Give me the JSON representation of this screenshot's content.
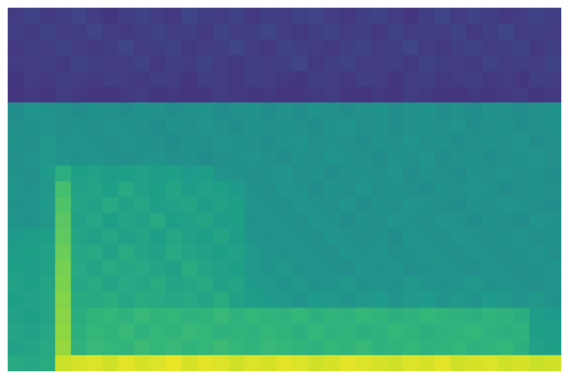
{
  "chart_data": {
    "type": "heatmap",
    "tick_labels": false,
    "grid": false,
    "color_range": [
      0,
      100
    ],
    "cells": [
      [
        18,
        20,
        17,
        19,
        21,
        18,
        16,
        19,
        20,
        18,
        17,
        21,
        19,
        18,
        20,
        17,
        19,
        18,
        20,
        21,
        18,
        17,
        19,
        20,
        18,
        16,
        19,
        21,
        18,
        20,
        19,
        17,
        18,
        20,
        19
      ],
      [
        19,
        17,
        20,
        18,
        19,
        21,
        18,
        17,
        19,
        20,
        18,
        19,
        17,
        20,
        18,
        19,
        21,
        18,
        17,
        19,
        20,
        18,
        19,
        17,
        20,
        18,
        19,
        18,
        20,
        17,
        19,
        21,
        18,
        19,
        18
      ],
      [
        17,
        19,
        18,
        20,
        18,
        17,
        19,
        21,
        18,
        19,
        20,
        17,
        18,
        19,
        21,
        18,
        17,
        20,
        19,
        18,
        17,
        19,
        20,
        18,
        19,
        21,
        18,
        17,
        19,
        20,
        18,
        19,
        20,
        17,
        19
      ],
      [
        18,
        18,
        19,
        17,
        20,
        19,
        18,
        18,
        20,
        17,
        19,
        18,
        20,
        18,
        17,
        19,
        18,
        19,
        21,
        17,
        19,
        20,
        18,
        18,
        19,
        17,
        20,
        19,
        18,
        17,
        20,
        18,
        19,
        18,
        20
      ],
      [
        16,
        18,
        17,
        19,
        18,
        17,
        19,
        18,
        17,
        19,
        18,
        16,
        19,
        18,
        17,
        19,
        18,
        17,
        16,
        19,
        18,
        17,
        19,
        18,
        16,
        18,
        19,
        17,
        18,
        19,
        17,
        18,
        16,
        19,
        18
      ],
      [
        15,
        17,
        16,
        18,
        17,
        16,
        15,
        17,
        18,
        16,
        17,
        15,
        16,
        18,
        17,
        16,
        17,
        15,
        16,
        17,
        18,
        16,
        15,
        17,
        16,
        18,
        17,
        16,
        15,
        17,
        16,
        17,
        18,
        16,
        17
      ],
      [
        49,
        52,
        51,
        50,
        49,
        51,
        50,
        49,
        51,
        50,
        49,
        50,
        51,
        49,
        50,
        51,
        49,
        50,
        49,
        51,
        50,
        49,
        50,
        51,
        49,
        50,
        51,
        49,
        50,
        49,
        51,
        50,
        49,
        50,
        51
      ],
      [
        50,
        51,
        52,
        50,
        51,
        50,
        52,
        51,
        50,
        49,
        51,
        50,
        52,
        50,
        49,
        51,
        50,
        51,
        50,
        49,
        51,
        52,
        50,
        51,
        49,
        50,
        51,
        50,
        52,
        49,
        50,
        51,
        49,
        50,
        51
      ],
      [
        51,
        50,
        53,
        51,
        52,
        51,
        50,
        52,
        51,
        50,
        49,
        51,
        50,
        52,
        51,
        50,
        49,
        51,
        52,
        50,
        51,
        50,
        49,
        51,
        50,
        52,
        50,
        51,
        49,
        50,
        51,
        50,
        52,
        49,
        50
      ],
      [
        50,
        52,
        53,
        52,
        51,
        52,
        51,
        50,
        51,
        52,
        50,
        51,
        49,
        50,
        51,
        52,
        50,
        49,
        51,
        50,
        52,
        51,
        50,
        49,
        51,
        50,
        52,
        49,
        50,
        51,
        49,
        50,
        51,
        52,
        50
      ],
      [
        51,
        50,
        54,
        62,
        56,
        57,
        55,
        56,
        57,
        55,
        56,
        54,
        55,
        52,
        51,
        50,
        51,
        52,
        50,
        51,
        49,
        50,
        51,
        50,
        52,
        49,
        51,
        50,
        49,
        51,
        50,
        52,
        50,
        51,
        49
      ],
      [
        52,
        51,
        53,
        70,
        57,
        58,
        56,
        60,
        57,
        56,
        58,
        55,
        57,
        56,
        54,
        51,
        50,
        52,
        51,
        49,
        51,
        50,
        52,
        50,
        51,
        50,
        49,
        51,
        50,
        52,
        51,
        49,
        50,
        51,
        50
      ],
      [
        51,
        52,
        54,
        72,
        58,
        57,
        60,
        57,
        59,
        56,
        57,
        58,
        55,
        57,
        56,
        52,
        51,
        50,
        52,
        51,
        50,
        52,
        49,
        51,
        50,
        52,
        51,
        50,
        49,
        51,
        50,
        52,
        51,
        50,
        49
      ],
      [
        52,
        51,
        53,
        74,
        57,
        59,
        56,
        58,
        57,
        60,
        56,
        57,
        58,
        55,
        56,
        51,
        52,
        51,
        50,
        52,
        51,
        49,
        51,
        50,
        52,
        51,
        50,
        52,
        51,
        49,
        51,
        50,
        49,
        52,
        51
      ],
      [
        54,
        55,
        56,
        75,
        58,
        57,
        59,
        57,
        58,
        56,
        59,
        57,
        56,
        58,
        55,
        52,
        51,
        52,
        51,
        50,
        52,
        51,
        50,
        51,
        49,
        52,
        51,
        50,
        52,
        51,
        50,
        51,
        52,
        50,
        51
      ],
      [
        55,
        56,
        57,
        77,
        59,
        60,
        57,
        61,
        58,
        57,
        60,
        58,
        57,
        56,
        57,
        53,
        52,
        51,
        52,
        51,
        50,
        52,
        51,
        52,
        50,
        51,
        52,
        51,
        50,
        52,
        51,
        50,
        51,
        52,
        50
      ],
      [
        56,
        55,
        57,
        79,
        60,
        58,
        61,
        59,
        60,
        58,
        57,
        61,
        58,
        57,
        56,
        53,
        52,
        53,
        51,
        52,
        51,
        50,
        52,
        51,
        52,
        50,
        51,
        52,
        51,
        50,
        52,
        51,
        50,
        51,
        52
      ],
      [
        57,
        56,
        58,
        80,
        59,
        61,
        58,
        60,
        59,
        61,
        58,
        59,
        60,
        57,
        58,
        54,
        53,
        52,
        53,
        51,
        52,
        53,
        51,
        52,
        51,
        53,
        52,
        51,
        52,
        53,
        51,
        52,
        51,
        50,
        52
      ],
      [
        56,
        57,
        58,
        81,
        61,
        60,
        62,
        59,
        61,
        60,
        59,
        60,
        58,
        61,
        57,
        55,
        54,
        53,
        52,
        54,
        53,
        52,
        53,
        54,
        52,
        53,
        54,
        52,
        53,
        52,
        54,
        53,
        52,
        53,
        51
      ],
      [
        57,
        56,
        58,
        82,
        62,
        65,
        66,
        64,
        67,
        65,
        66,
        64,
        65,
        67,
        64,
        66,
        65,
        64,
        66,
        63,
        65,
        64,
        66,
        65,
        63,
        64,
        66,
        65,
        64,
        63,
        65,
        64,
        62,
        55,
        54
      ],
      [
        58,
        57,
        59,
        83,
        63,
        66,
        65,
        67,
        64,
        66,
        65,
        67,
        66,
        64,
        65,
        64,
        66,
        65,
        63,
        66,
        64,
        65,
        63,
        64,
        66,
        65,
        63,
        64,
        65,
        66,
        64,
        63,
        64,
        56,
        55
      ],
      [
        57,
        58,
        60,
        84,
        64,
        67,
        66,
        65,
        68,
        66,
        67,
        65,
        66,
        68,
        66,
        65,
        67,
        66,
        65,
        64,
        66,
        65,
        67,
        64,
        65,
        66,
        64,
        65,
        66,
        64,
        65,
        66,
        63,
        57,
        56
      ],
      [
        60,
        59,
        61,
        92,
        94,
        95,
        93,
        96,
        94,
        95,
        97,
        94,
        96,
        95,
        93,
        95,
        94,
        96,
        95,
        93,
        94,
        96,
        95,
        94,
        93,
        95,
        94,
        96,
        93,
        94,
        95,
        93,
        94,
        92,
        93
      ]
    ]
  }
}
